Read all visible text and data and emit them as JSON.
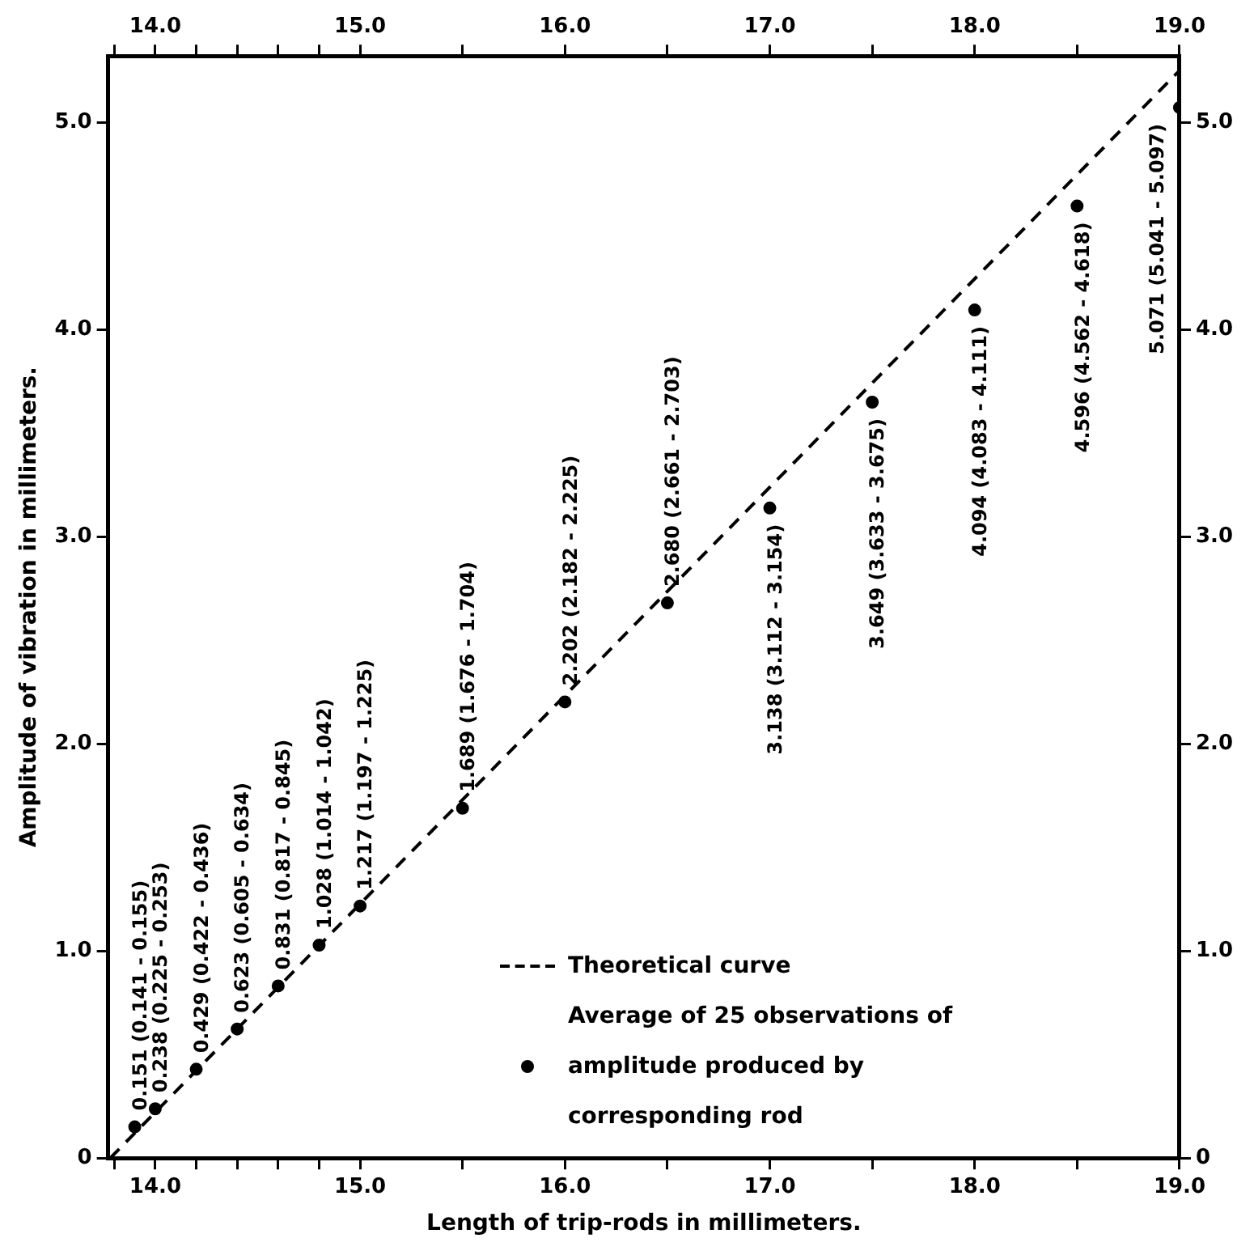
{
  "chart_data": {
    "type": "scatter",
    "xlabel": "Length of trip-rods in millimeters.",
    "ylabel": "Amplitude of vibration in millimeters.",
    "xlim": [
      13.77,
      19.0
    ],
    "xticks": [
      {
        "value": 13.8,
        "label": null
      },
      {
        "value": 14.0,
        "label": "14.0"
      },
      {
        "value": 14.2,
        "label": null
      },
      {
        "value": 14.4,
        "label": null
      },
      {
        "value": 14.6,
        "label": null
      },
      {
        "value": 14.8,
        "label": null
      },
      {
        "value": 15.0,
        "label": "15.0"
      },
      {
        "value": 15.5,
        "label": null
      },
      {
        "value": 16.0,
        "label": "16.0"
      },
      {
        "value": 16.5,
        "label": null
      },
      {
        "value": 17.0,
        "label": "17.0"
      },
      {
        "value": 17.5,
        "label": null
      },
      {
        "value": 18.0,
        "label": "18.0"
      },
      {
        "value": 18.5,
        "label": null
      },
      {
        "value": 19.0,
        "label": "19.0"
      }
    ],
    "x2lim": [
      13.77,
      19.0
    ],
    "x2ticks": [
      {
        "value": 13.8,
        "label": null
      },
      {
        "value": 14.0,
        "label": "14.0"
      },
      {
        "value": 14.2,
        "label": null
      },
      {
        "value": 14.4,
        "label": null
      },
      {
        "value": 14.6,
        "label": null
      },
      {
        "value": 14.8,
        "label": null
      },
      {
        "value": 15.0,
        "label": "15.0"
      },
      {
        "value": 15.5,
        "label": null
      },
      {
        "value": 16.0,
        "label": "16.0"
      },
      {
        "value": 16.5,
        "label": null
      },
      {
        "value": 17.0,
        "label": "17.0"
      },
      {
        "value": 17.5,
        "label": null
      },
      {
        "value": 18.0,
        "label": "18.0"
      },
      {
        "value": 18.5,
        "label": null
      },
      {
        "value": 19.0,
        "label": "19.0"
      }
    ],
    "ylim": [
      0,
      5.32
    ],
    "yticks": [
      0,
      {
        "value": 1.0,
        "label": "1.0"
      },
      {
        "value": 2.0,
        "label": "2.0"
      },
      {
        "value": 3.0,
        "label": "3.0"
      },
      {
        "value": 4.0,
        "label": "4.0"
      },
      {
        "value": 5.0,
        "label": "5.0"
      }
    ],
    "y2lim": [
      0,
      5.32
    ],
    "y2ticks": [
      0,
      {
        "value": 1.0,
        "label": "1.0"
      },
      {
        "value": 2.0,
        "label": "2.0"
      },
      {
        "value": 3.0,
        "label": "3.0"
      },
      {
        "value": 4.0,
        "label": "4.0"
      },
      {
        "value": 5.0,
        "label": "5.0"
      }
    ],
    "grid": false,
    "legend": "bottom right",
    "series": [
      {
        "type": "line",
        "name": "Theoretical curve",
        "color": "#000000",
        "line_style": "dashed",
        "marker": "none",
        "x": [
          13.78,
          19.0
        ],
        "values": [
          0,
          5.25
        ]
      },
      {
        "type": "scatter",
        "name": "Average of 25 observations of amplitude produced by corresponding rod",
        "color": "#000000",
        "marker": "circle",
        "x": [
          13.9,
          14.0,
          14.2,
          14.4,
          14.6,
          14.8,
          15.0,
          15.5,
          16.0,
          16.5,
          17.0,
          17.5,
          18.0,
          18.5,
          19.0
        ],
        "values": [
          0.151,
          0.238,
          0.429,
          0.623,
          0.831,
          1.028,
          1.217,
          1.689,
          2.202,
          2.68,
          3.138,
          3.649,
          4.094,
          4.596,
          5.071
        ],
        "value_labels": [
          "0.151 (0.141 - 0.155)",
          "0.238 (0.225 - 0.253)",
          "0.429 (0.422 - 0.436)",
          "0.623 (0.605 - 0.634)",
          "0.831 (0.817 - 0.845)",
          "1.028 (1.014 - 1.042)",
          "1.217 (1.197 - 1.225)",
          "1.689 (1.676 - 1.704)",
          "2.202 (2.182 - 2.225)",
          "2.680 (2.661 - 2.703)",
          "3.138 (3.112 - 3.154)",
          "3.649 (3.633 - 3.675)",
          "4.094 (4.083 - 4.111)",
          "4.596 (4.562 - 4.618)",
          "5.071 (5.041 - 5.097)"
        ]
      }
    ]
  }
}
